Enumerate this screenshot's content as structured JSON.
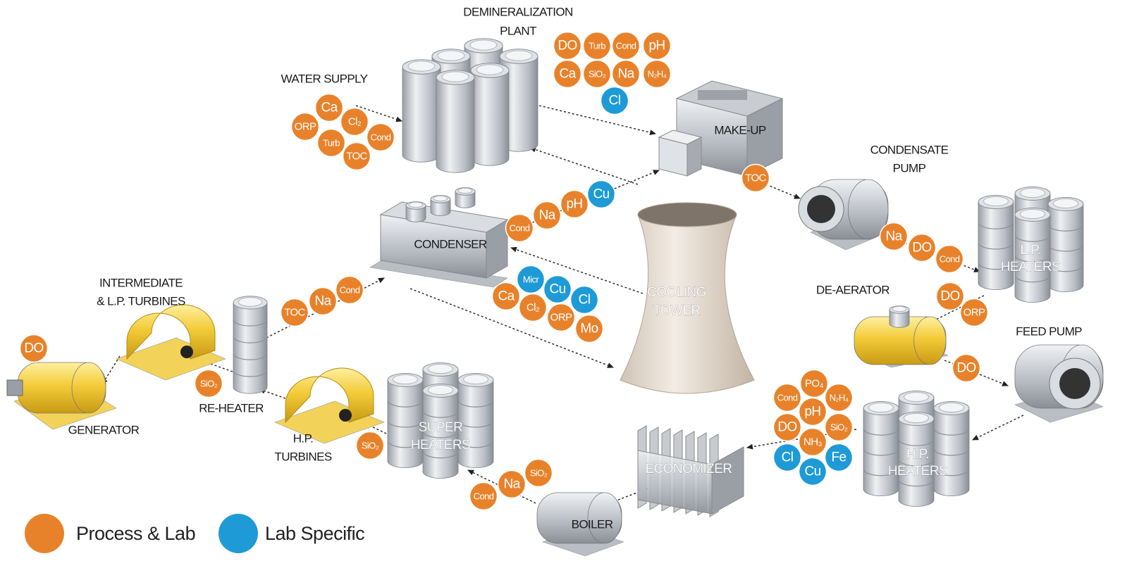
{
  "nodes": [
    {
      "label": [
        "DEMINERALIZATION",
        "PLANT"
      ]
    },
    {
      "label": [
        "WATER SUPPLY"
      ]
    },
    {
      "label": [
        "MAKE-UP"
      ]
    },
    {
      "label": [
        "CONDENSATE",
        "PUMP"
      ]
    },
    {
      "label": [
        "L.P.",
        "HEATERS"
      ]
    },
    {
      "label": [
        "DE-AERATOR"
      ]
    },
    {
      "label": [
        "FEED PUMP"
      ]
    },
    {
      "label": [
        "H.P.",
        "HEATERS"
      ]
    },
    {
      "label": [
        "ECONOMIZER"
      ]
    },
    {
      "label": [
        "BOILER"
      ]
    },
    {
      "label": [
        "SUPER",
        "HEATERS"
      ]
    },
    {
      "label": [
        "H.P.",
        "TURBINES"
      ]
    },
    {
      "label": [
        "RE-HEATER"
      ]
    },
    {
      "label": [
        "GENERATOR"
      ]
    },
    {
      "label": [
        "INTERMEDIATE",
        "& L.P. TURBINES"
      ]
    },
    {
      "label": [
        "CONDENSER"
      ]
    },
    {
      "label": [
        "COOLING",
        "TOWER"
      ]
    }
  ],
  "badges": [
    {
      "text": "Ca",
      "color": "#e8822a"
    },
    {
      "text": "Cl₂",
      "color": "#e8822a"
    },
    {
      "text": "ORP",
      "color": "#e8822a"
    },
    {
      "text": "Cond",
      "color": "#e8822a"
    },
    {
      "text": "Turb",
      "color": "#e8822a"
    },
    {
      "text": "TOC",
      "color": "#e8822a"
    },
    {
      "text": "DO",
      "color": "#e8822a"
    },
    {
      "text": "Turb",
      "color": "#e8822a"
    },
    {
      "text": "Cond",
      "color": "#e8822a"
    },
    {
      "text": "pH",
      "color": "#e8822a"
    },
    {
      "text": "Ca",
      "color": "#e8822a"
    },
    {
      "text": "SiO₂",
      "color": "#e8822a"
    },
    {
      "text": "Na",
      "color": "#e8822a"
    },
    {
      "text": "N₂H₄",
      "color": "#e8822a"
    },
    {
      "text": "Cl",
      "color": "#1e9ad6"
    },
    {
      "text": "TOC",
      "color": "#e8822a"
    },
    {
      "text": "Na",
      "color": "#e8822a"
    },
    {
      "text": "DO",
      "color": "#e8822a"
    },
    {
      "text": "Cond",
      "color": "#e8822a"
    },
    {
      "text": "DO",
      "color": "#e8822a"
    },
    {
      "text": "ORP",
      "color": "#e8822a"
    },
    {
      "text": "DO",
      "color": "#e8822a"
    },
    {
      "text": "PO₄",
      "color": "#e8822a"
    },
    {
      "text": "Cond",
      "color": "#e8822a"
    },
    {
      "text": "N₂H₄",
      "color": "#e8822a"
    },
    {
      "text": "pH",
      "color": "#e8822a"
    },
    {
      "text": "DO",
      "color": "#e8822a"
    },
    {
      "text": "SiO₂",
      "color": "#e8822a"
    },
    {
      "text": "NH₃",
      "color": "#e8822a"
    },
    {
      "text": "Cl",
      "color": "#1e9ad6"
    },
    {
      "text": "Fe",
      "color": "#1e9ad6"
    },
    {
      "text": "Cu",
      "color": "#1e9ad6"
    },
    {
      "text": "Cond",
      "color": "#e8822a"
    },
    {
      "text": "Na",
      "color": "#e8822a"
    },
    {
      "text": "SiO₂",
      "color": "#e8822a"
    },
    {
      "text": "SiO₂",
      "color": "#e8822a"
    },
    {
      "text": "SiO₂",
      "color": "#e8822a"
    },
    {
      "text": "DO",
      "color": "#e8822a"
    },
    {
      "text": "TOC",
      "color": "#e8822a"
    },
    {
      "text": "Na",
      "color": "#e8822a"
    },
    {
      "text": "Cond",
      "color": "#e8822a"
    },
    {
      "text": "Cond",
      "color": "#e8822a"
    },
    {
      "text": "Na",
      "color": "#e8822a"
    },
    {
      "text": "pH",
      "color": "#e8822a"
    },
    {
      "text": "Cu",
      "color": "#1e9ad6"
    },
    {
      "text": "Micr",
      "color": "#1e9ad6"
    },
    {
      "text": "Cu",
      "color": "#1e9ad6"
    },
    {
      "text": "Cl",
      "color": "#1e9ad6"
    },
    {
      "text": "Ca",
      "color": "#e8822a"
    },
    {
      "text": "Cl₂",
      "color": "#e8822a"
    },
    {
      "text": "ORP",
      "color": "#e8822a"
    },
    {
      "text": "Mo",
      "color": "#e8822a"
    }
  ],
  "legend": [
    {
      "label": "Process & Lab",
      "color": "#e8822a"
    },
    {
      "label": "Lab Specific",
      "color": "#1e9ad6"
    }
  ]
}
